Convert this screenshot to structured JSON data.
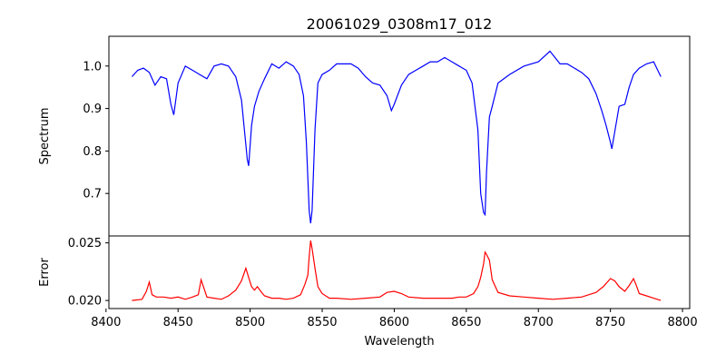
{
  "chart_data": [
    {
      "type": "line",
      "title": "20061029_0308m17_012",
      "xlabel": "",
      "ylabel": "Spectrum",
      "xlim": [
        8402,
        8805
      ],
      "ylim": [
        0.6,
        1.07
      ],
      "yticks": [
        0.7,
        0.8,
        0.9,
        1.0
      ],
      "series": [
        {
          "color": "#0000ff",
          "x": [
            8418,
            8422,
            8426,
            8430,
            8434,
            8438,
            8442,
            8445,
            8447,
            8450,
            8455,
            8460,
            8465,
            8470,
            8475,
            8480,
            8485,
            8490,
            8494,
            8496,
            8498,
            8499,
            8501,
            8503,
            8506,
            8510,
            8515,
            8520,
            8525,
            8530,
            8534,
            8537,
            8539,
            8541,
            8542,
            8543,
            8545,
            8547,
            8550,
            8555,
            8560,
            8565,
            8570,
            8575,
            8580,
            8585,
            8590,
            8595,
            8598,
            8600,
            8605,
            8610,
            8615,
            8620,
            8625,
            8630,
            8635,
            8640,
            8645,
            8650,
            8654,
            8658,
            8660,
            8662,
            8663,
            8664,
            8666,
            8668,
            8672,
            8680,
            8690,
            8700,
            8708,
            8715,
            8720,
            8725,
            8730,
            8735,
            8740,
            8744,
            8747,
            8750,
            8751,
            8753,
            8756,
            8760,
            8763,
            8766,
            8770,
            8775,
            8780,
            8785
          ],
          "y": [
            0.975,
            0.99,
            0.995,
            0.985,
            0.955,
            0.975,
            0.97,
            0.91,
            0.885,
            0.96,
            1.0,
            0.99,
            0.98,
            0.97,
            1.0,
            1.005,
            1.0,
            0.975,
            0.92,
            0.85,
            0.78,
            0.765,
            0.86,
            0.905,
            0.94,
            0.97,
            1.005,
            0.995,
            1.01,
            1.0,
            0.98,
            0.93,
            0.82,
            0.66,
            0.63,
            0.66,
            0.85,
            0.96,
            0.98,
            0.99,
            1.005,
            1.005,
            1.005,
            0.995,
            0.975,
            0.96,
            0.955,
            0.93,
            0.895,
            0.91,
            0.955,
            0.98,
            0.99,
            1.0,
            1.01,
            1.01,
            1.02,
            1.01,
            1.0,
            0.99,
            0.96,
            0.85,
            0.7,
            0.655,
            0.65,
            0.75,
            0.88,
            0.905,
            0.96,
            0.98,
            1.0,
            1.01,
            1.035,
            1.005,
            1.005,
            0.995,
            0.985,
            0.97,
            0.935,
            0.895,
            0.86,
            0.82,
            0.805,
            0.845,
            0.905,
            0.91,
            0.95,
            0.98,
            0.995,
            1.005,
            1.01,
            0.975
          ]
        }
      ]
    },
    {
      "type": "line",
      "title": "",
      "xlabel": "Wavelength",
      "ylabel": "Error",
      "xlim": [
        8402,
        8805
      ],
      "ylim": [
        0.0193,
        0.0256
      ],
      "yticks": [
        0.02,
        0.025
      ],
      "xticks": [
        8400,
        8450,
        8500,
        8550,
        8600,
        8650,
        8700,
        8750,
        8800
      ],
      "series": [
        {
          "color": "#ff0000",
          "x": [
            8418,
            8425,
            8428,
            8430,
            8432,
            8435,
            8440,
            8445,
            8450,
            8455,
            8460,
            8464,
            8466,
            8470,
            8475,
            8480,
            8485,
            8490,
            8494,
            8497,
            8499,
            8501,
            8503,
            8505,
            8508,
            8510,
            8515,
            8520,
            8525,
            8530,
            8535,
            8538,
            8540,
            8541,
            8542,
            8543,
            8545,
            8547,
            8550,
            8555,
            8560,
            8570,
            8580,
            8590,
            8595,
            8600,
            8605,
            8610,
            8620,
            8630,
            8640,
            8645,
            8650,
            8655,
            8658,
            8660,
            8662,
            8663,
            8664,
            8666,
            8668,
            8672,
            8680,
            8690,
            8700,
            8710,
            8720,
            8730,
            8740,
            8745,
            8750,
            8753,
            8756,
            8760,
            8763,
            8766,
            8768,
            8770,
            8775,
            8780,
            8785
          ],
          "y": [
            0.02,
            0.0201,
            0.0208,
            0.0216,
            0.0205,
            0.0203,
            0.0203,
            0.0202,
            0.0203,
            0.0201,
            0.0203,
            0.0205,
            0.0218,
            0.0203,
            0.0202,
            0.0201,
            0.0204,
            0.0209,
            0.0217,
            0.0228,
            0.022,
            0.0212,
            0.0209,
            0.0212,
            0.0207,
            0.0204,
            0.0202,
            0.0202,
            0.0201,
            0.0202,
            0.0205,
            0.0214,
            0.0222,
            0.0238,
            0.0252,
            0.0245,
            0.0228,
            0.0212,
            0.0206,
            0.0202,
            0.0202,
            0.0201,
            0.0202,
            0.0203,
            0.0207,
            0.0208,
            0.0206,
            0.0203,
            0.0202,
            0.0202,
            0.0202,
            0.0203,
            0.0203,
            0.0206,
            0.0212,
            0.022,
            0.0232,
            0.0242,
            0.024,
            0.0235,
            0.0218,
            0.0207,
            0.0204,
            0.0203,
            0.0202,
            0.0201,
            0.0202,
            0.0203,
            0.0207,
            0.0212,
            0.0219,
            0.0217,
            0.0212,
            0.0208,
            0.0213,
            0.0219,
            0.0213,
            0.0206,
            0.0204,
            0.0202,
            0.02
          ]
        }
      ]
    }
  ]
}
